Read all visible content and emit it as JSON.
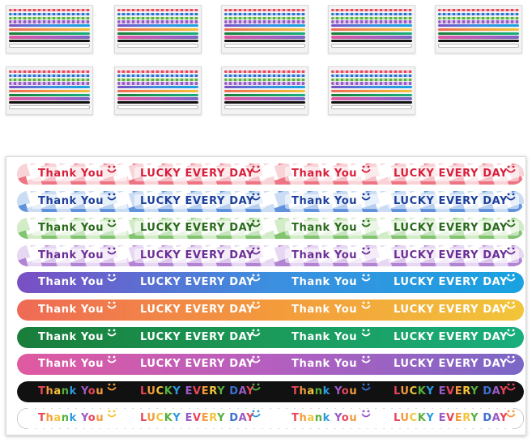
{
  "thumbnails": {
    "count": 9,
    "rows": [
      5,
      4
    ]
  },
  "sheet": {
    "strips": [
      {
        "style": "gingham",
        "colors": [
          "#e8455b",
          "#f4b6bd"
        ],
        "text_color": "#d81e3a",
        "texts": [
          "Thank You",
          "LUCKY EVERY DAY",
          "Thank You",
          "LUCKY EVERY DAY"
        ]
      },
      {
        "style": "gingham",
        "colors": [
          "#2c6fd0",
          "#a8c6ef"
        ],
        "text_color": "#1d3f9a",
        "texts": [
          "Thank You",
          "LUCKY EVERY DAY",
          "Thank You",
          "LUCKY EVERY DAY"
        ]
      },
      {
        "style": "gingham",
        "colors": [
          "#58b03f",
          "#b6e0a4"
        ],
        "text_color": "#2a6a1c",
        "texts": [
          "Thank You",
          "LUCKY EVERY DAY",
          "Thank You",
          "LUCKY EVERY DAY"
        ]
      },
      {
        "style": "gingham",
        "colors": [
          "#9a5bc6",
          "#d6bde9"
        ],
        "text_color": "#6b2d95",
        "texts": [
          "Thank You",
          "LUCKY EVERY DAY",
          "Thank You",
          "LUCKY EVERY DAY"
        ]
      },
      {
        "style": "gradient",
        "colors": [
          "#7a4fc4",
          "#3d8fe0",
          "#19a3e0"
        ],
        "text_color": "#ffffff",
        "texts": [
          "Thank You",
          "LUCKY EVERY DAY",
          "Thank You",
          "LUCKY EVERY DAY"
        ]
      },
      {
        "style": "gradient",
        "colors": [
          "#ef6a55",
          "#f39a3c",
          "#f2c53a"
        ],
        "text_color": "#ffffff",
        "texts": [
          "Thank You",
          "LUCKY EVERY DAY",
          "Thank You",
          "LUCKY EVERY DAY"
        ]
      },
      {
        "style": "gradient",
        "colors": [
          "#1a7d3a",
          "#1b9a5a",
          "#19ae7d"
        ],
        "text_color": "#ffffff",
        "texts": [
          "Thank You",
          "LUCKY EVERY DAY",
          "Thank You",
          "LUCKY EVERY DAY"
        ]
      },
      {
        "style": "gradient",
        "colors": [
          "#e05aa0",
          "#b55fc0",
          "#7b67c6"
        ],
        "text_color": "#ffffff",
        "texts": [
          "Thank You",
          "LUCKY EVERY DAY",
          "Thank You",
          "LUCKY EVERY DAY"
        ]
      },
      {
        "style": "solid",
        "colors": [
          "#111111"
        ],
        "text_color": "rainbow",
        "texts": [
          "Thank You",
          "LUCKY EVERY DAY",
          "Thank You",
          "LUCKY EVERY DAY"
        ]
      },
      {
        "style": "outline",
        "colors": [
          "#ffffff"
        ],
        "text_color": "rainbow",
        "texts": [
          "Thank You",
          "LUCKY EVERY DAY",
          "Thank You",
          "LUCKY EVERY DAY"
        ]
      }
    ],
    "rainbow": [
      "#e8455b",
      "#f39a3c",
      "#f2c53a",
      "#58b03f",
      "#2c9be0",
      "#3d6fd0",
      "#9a5bc6"
    ]
  }
}
